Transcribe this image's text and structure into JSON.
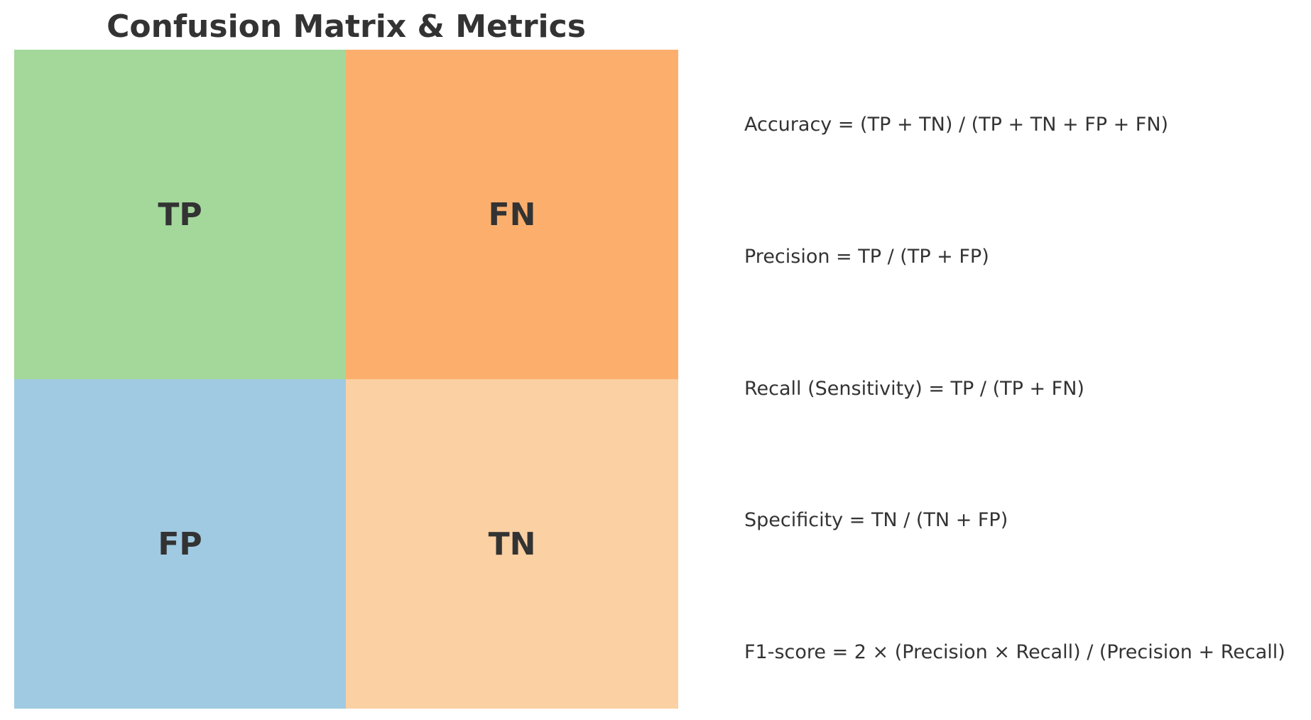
{
  "title": "Confusion Matrix & Metrics",
  "matrix": {
    "cells": [
      {
        "label": "TP",
        "color": "#a3d89a"
      },
      {
        "label": "FN",
        "color": "#fcaf6d"
      },
      {
        "label": "FP",
        "color": "#a0cae2"
      },
      {
        "label": "TN",
        "color": "#fbd0a2"
      }
    ]
  },
  "metrics": [
    "Accuracy = (TP + TN) / (TP + TN + FP + FN)",
    "Precision = TP / (TP + FP)",
    "Recall (Sensitivity) = TP / (TP + FN)",
    "Specificity = TN / (TN + FP)",
    "F1-score = 2 × (Precision × Recall) / (Precision + Recall)"
  ]
}
